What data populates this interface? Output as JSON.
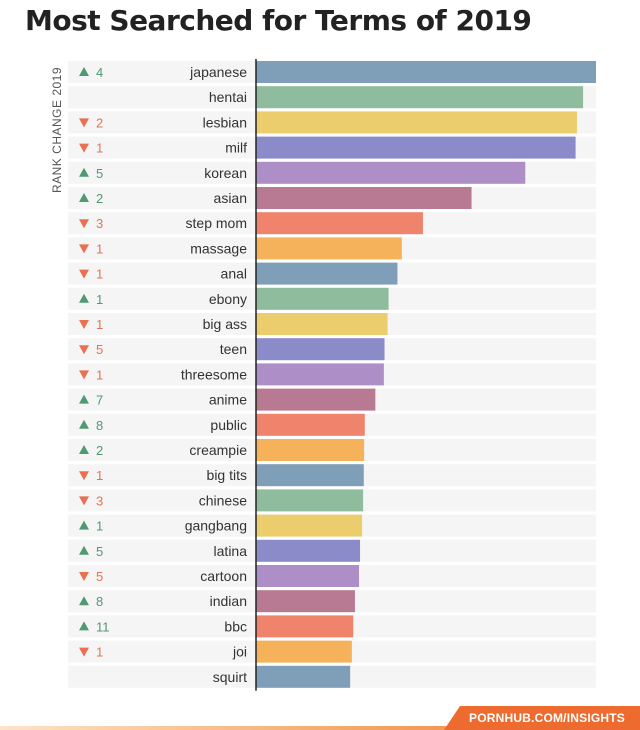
{
  "chart_data": {
    "type": "bar",
    "orientation": "horizontal",
    "title": "Most Searched for Terms of 2019",
    "side_label": "RANK CHANGE 2019",
    "categories": [
      "japanese",
      "hentai",
      "lesbian",
      "milf",
      "korean",
      "asian",
      "step mom",
      "massage",
      "anal",
      "ebony",
      "big ass",
      "teen",
      "threesome",
      "anime",
      "public",
      "creampie",
      "big tits",
      "chinese",
      "gangbang",
      "latina",
      "cartoon",
      "indian",
      "bbc",
      "joi",
      "squirt"
    ],
    "rank_change": [
      {
        "dir": "up",
        "text": "4"
      },
      {
        "dir": "none",
        "text": ""
      },
      {
        "dir": "down",
        "text": "2"
      },
      {
        "dir": "down",
        "text": "1"
      },
      {
        "dir": "up",
        "text": "5"
      },
      {
        "dir": "up",
        "text": "2"
      },
      {
        "dir": "down",
        "text": "3"
      },
      {
        "dir": "down",
        "text": "1"
      },
      {
        "dir": "down",
        "text": "1"
      },
      {
        "dir": "up",
        "text": "1"
      },
      {
        "dir": "down",
        "text": "1"
      },
      {
        "dir": "down",
        "text": "5"
      },
      {
        "dir": "down",
        "text": "1"
      },
      {
        "dir": "up",
        "text": "7"
      },
      {
        "dir": "up",
        "text": "8"
      },
      {
        "dir": "up",
        "text": "2"
      },
      {
        "dir": "down",
        "text": "1"
      },
      {
        "dir": "down",
        "text": "3"
      },
      {
        "dir": "up",
        "text": "1"
      },
      {
        "dir": "up",
        "text": "5"
      },
      {
        "dir": "down",
        "text": "5"
      },
      {
        "dir": "up",
        "text": "8"
      },
      {
        "dir": "up",
        "text": "11"
      },
      {
        "dir": "down",
        "text": "1"
      },
      {
        "dir": "none",
        "text": ""
      }
    ],
    "values": [
      100,
      96.2,
      94.4,
      94.0,
      79.2,
      63.4,
      49.1,
      42.9,
      41.6,
      39.0,
      38.7,
      37.8,
      37.6,
      35.1,
      32.0,
      31.8,
      31.7,
      31.5,
      31.2,
      30.6,
      30.3,
      29.1,
      28.6,
      28.2,
      27.7
    ],
    "xlim": [
      0,
      100
    ],
    "palette": [
      "#7f9eb8",
      "#8fbc9c",
      "#eccd6e",
      "#8b8bca",
      "#ad8ec6",
      "#b87a92",
      "#ef836b",
      "#f6b25b"
    ],
    "up_color": "#4f9a72",
    "down_color": "#ea7052",
    "grid": false
  },
  "footer": {
    "source": "PORNHUB.COM/INSIGHTS",
    "accent": "#ee6b2f"
  }
}
